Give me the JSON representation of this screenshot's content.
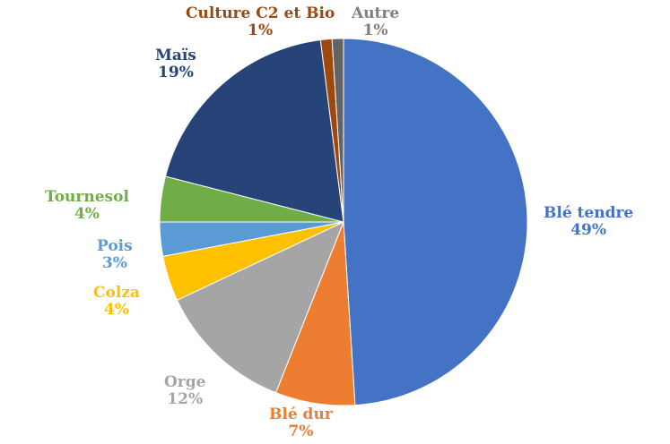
{
  "chart_data": {
    "type": "pie",
    "title": "",
    "slices": [
      {
        "label": "Blé tendre",
        "value": 49,
        "display": "49%",
        "color": "#4472C4"
      },
      {
        "label": "Blé dur",
        "value": 7,
        "display": "7%",
        "color": "#ED7D31"
      },
      {
        "label": "Orge",
        "value": 12,
        "display": "12%",
        "color": "#A5A5A5"
      },
      {
        "label": "Colza",
        "value": 4,
        "display": "4%",
        "color": "#FFC000"
      },
      {
        "label": "Pois",
        "value": 3,
        "display": "3%",
        "color": "#5B9BD5"
      },
      {
        "label": "Tournesol",
        "value": 4,
        "display": "4%",
        "color": "#70AD47"
      },
      {
        "label": "Maïs",
        "value": 19,
        "display": "19%",
        "color": "#264478"
      },
      {
        "label": "Culture C2 et Bio",
        "value": 1,
        "display": "1%",
        "color": "#9E480E"
      },
      {
        "label": "Autre",
        "value": 1,
        "display": "1%",
        "color": "#636363"
      }
    ],
    "label_colors": {
      "Blé tendre": "#4472C4",
      "Blé dur": "#ED7D31",
      "Orge": "#A5A5A5",
      "Colza": "#FFC000",
      "Pois": "#5B9BD5",
      "Tournesol": "#70AD47",
      "Maïs": "#264478",
      "Culture C2 et Bio": "#9E480E",
      "Autre": "#7F7F7F"
    },
    "legend": "none",
    "labels": "outside-slice"
  }
}
